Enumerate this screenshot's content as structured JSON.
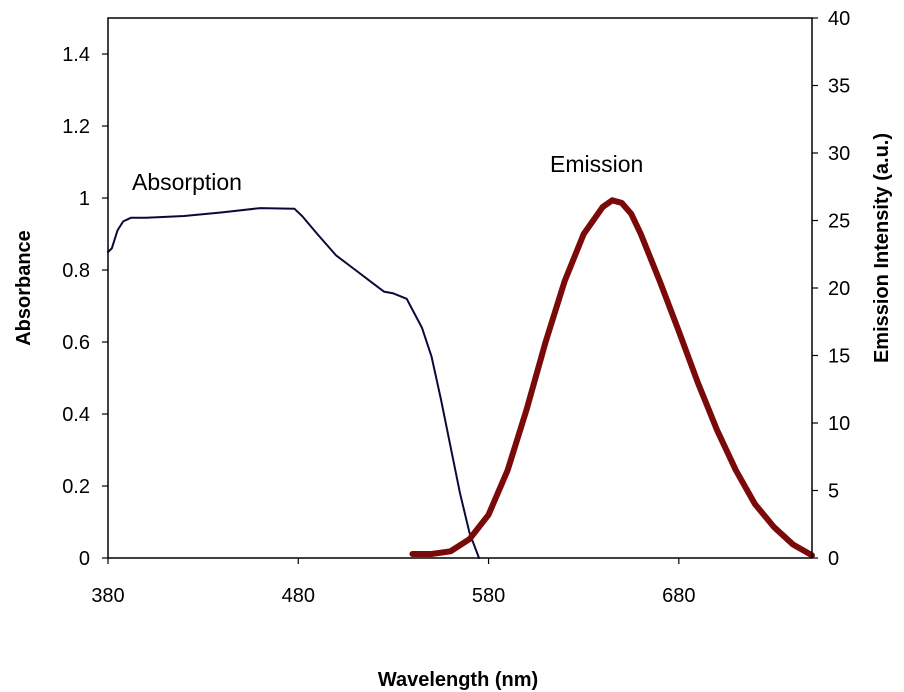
{
  "chart_data": {
    "type": "line",
    "xlabel": "Wavelength (nm)",
    "ylabel": "Absorbance",
    "y2label": "Emission Intensity (a.u.)",
    "xlim": [
      380,
      750
    ],
    "ylim": [
      0,
      1.5
    ],
    "y2lim": [
      0,
      40
    ],
    "x_ticks": [
      380,
      480,
      580,
      680
    ],
    "y_ticks": [
      0,
      0.2,
      0.4,
      0.6,
      0.8,
      1,
      1.2,
      1.4
    ],
    "y2_ticks": [
      0,
      5,
      10,
      15,
      20,
      25,
      30,
      35,
      40
    ],
    "grid": false,
    "annotations": [
      {
        "text": "Absorption"
      },
      {
        "text": "Emission"
      }
    ],
    "series": [
      {
        "axis": "left",
        "color": "#0a0a3a",
        "x": [
          380,
          382,
          385,
          388,
          392,
          400,
          420,
          440,
          460,
          478,
          482,
          490,
          500,
          510,
          520,
          525,
          530,
          537,
          540,
          545,
          550,
          555,
          560,
          565,
          570,
          575
        ],
        "y": [
          0.85,
          0.86,
          0.91,
          0.935,
          0.945,
          0.945,
          0.95,
          0.96,
          0.972,
          0.97,
          0.95,
          0.9,
          0.84,
          0.8,
          0.76,
          0.74,
          0.735,
          0.72,
          0.69,
          0.64,
          0.56,
          0.44,
          0.31,
          0.18,
          0.07,
          0.0
        ]
      },
      {
        "axis": "right",
        "color": "#7a0a0a",
        "x": [
          540,
          550,
          560,
          570,
          580,
          590,
          600,
          610,
          620,
          630,
          640,
          645,
          650,
          655,
          660,
          670,
          680,
          690,
          700,
          710,
          720,
          730,
          740,
          750
        ],
        "y": [
          0.3,
          0.3,
          0.5,
          1.4,
          3.2,
          6.5,
          11,
          16,
          20.5,
          24,
          26,
          26.5,
          26.3,
          25.5,
          24,
          20.5,
          16.8,
          13,
          9.5,
          6.5,
          4,
          2.3,
          1.0,
          0.2
        ]
      }
    ]
  }
}
